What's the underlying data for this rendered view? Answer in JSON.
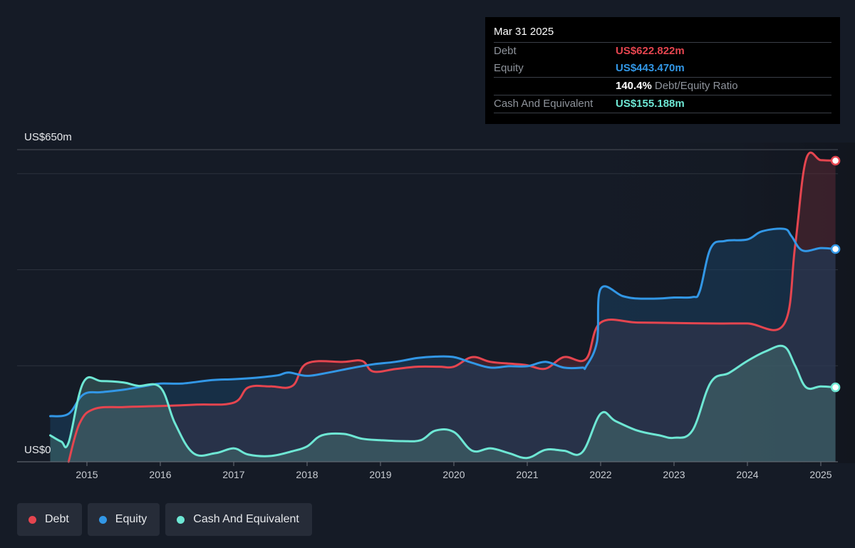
{
  "tooltip": {
    "date": "Mar 31 2025",
    "rows": [
      {
        "label": "Debt",
        "value": "US$622.822m",
        "color": "#e5454f"
      },
      {
        "label": "Equity",
        "value": "US$443.470m",
        "color": "#3297e6"
      },
      {
        "label": "",
        "value": "140.4%",
        "extra": "Debt/Equity Ratio",
        "color": "#ffffff"
      },
      {
        "label": "Cash And Equivalent",
        "value": "US$155.188m",
        "color": "#6ee7d4"
      }
    ]
  },
  "legend": [
    {
      "label": "Debt",
      "color": "#e5454f"
    },
    {
      "label": "Equity",
      "color": "#3297e6"
    },
    {
      "label": "Cash And Equivalent",
      "color": "#6ee7d4"
    }
  ],
  "chart_data": {
    "type": "area",
    "y_top_label": "US$650m",
    "y_bottom_label": "US$0",
    "ylim": [
      0,
      650
    ],
    "xlim": [
      2014.5,
      2025.25
    ],
    "x_ticks": [
      "2015",
      "2016",
      "2017",
      "2018",
      "2019",
      "2020",
      "2021",
      "2022",
      "2023",
      "2024",
      "2025"
    ],
    "grid": true,
    "series": [
      {
        "name": "Debt",
        "color": "#e5454f",
        "x": [
          2014.75,
          2014.9,
          2015.1,
          2015.5,
          2016.0,
          2016.5,
          2017.0,
          2017.2,
          2017.5,
          2017.8,
          2018.0,
          2018.5,
          2018.75,
          2018.9,
          2019.2,
          2019.5,
          2019.8,
          2020.0,
          2020.25,
          2020.5,
          2020.8,
          2021.0,
          2021.25,
          2021.5,
          2021.8,
          2022.0,
          2022.5,
          2023.0,
          2023.5,
          2024.0,
          2024.5,
          2024.65,
          2024.8,
          2025.0,
          2025.2
        ],
        "values": [
          0,
          80,
          110,
          114,
          116,
          119,
          123,
          155,
          157,
          158,
          205,
          208,
          210,
          188,
          193,
          198,
          198,
          198,
          218,
          208,
          204,
          201,
          194,
          218,
          214,
          290,
          290,
          289,
          288,
          288,
          287,
          450,
          630,
          628,
          627
        ]
      },
      {
        "name": "Equity",
        "color": "#3297e6",
        "x": [
          2014.5,
          2014.75,
          2014.95,
          2015.2,
          2015.5,
          2015.8,
          2016.0,
          2016.3,
          2016.7,
          2017.0,
          2017.3,
          2017.6,
          2017.75,
          2018.0,
          2018.3,
          2018.6,
          2018.9,
          2019.2,
          2019.5,
          2019.75,
          2020.0,
          2020.25,
          2020.5,
          2020.75,
          2021.0,
          2021.25,
          2021.5,
          2021.75,
          2021.8,
          2021.95,
          2022.0,
          2022.3,
          2022.5,
          2022.8,
          2023.0,
          2023.25,
          2023.35,
          2023.5,
          2023.7,
          2024.0,
          2024.2,
          2024.5,
          2024.6,
          2024.75,
          2025.0,
          2025.2
        ],
        "values": [
          95,
          100,
          140,
          145,
          150,
          158,
          163,
          163,
          170,
          172,
          175,
          180,
          186,
          179,
          186,
          195,
          203,
          208,
          216,
          219,
          218,
          206,
          196,
          199,
          199,
          208,
          196,
          196,
          198,
          250,
          360,
          345,
          340,
          340,
          342,
          343,
          355,
          445,
          460,
          463,
          480,
          485,
          470,
          440,
          445,
          443
        ]
      },
      {
        "name": "Cash And Equivalent",
        "color": "#6ee7d4",
        "x": [
          2014.5,
          2014.65,
          2014.75,
          2014.95,
          2015.2,
          2015.5,
          2015.7,
          2016.0,
          2016.2,
          2016.45,
          2016.75,
          2017.0,
          2017.2,
          2017.5,
          2017.8,
          2018.0,
          2018.2,
          2018.5,
          2018.75,
          2019.0,
          2019.3,
          2019.55,
          2019.75,
          2020.0,
          2020.25,
          2020.5,
          2020.75,
          2021.0,
          2021.25,
          2021.5,
          2021.75,
          2022.0,
          2022.2,
          2022.5,
          2022.8,
          2023.0,
          2023.25,
          2023.5,
          2023.75,
          2024.0,
          2024.25,
          2024.5,
          2024.65,
          2024.8,
          2025.0,
          2025.2
        ],
        "values": [
          55,
          42,
          40,
          165,
          168,
          165,
          158,
          155,
          80,
          18,
          18,
          28,
          15,
          12,
          22,
          32,
          55,
          58,
          48,
          45,
          43,
          45,
          65,
          62,
          23,
          28,
          18,
          8,
          25,
          23,
          20,
          100,
          85,
          65,
          55,
          50,
          65,
          165,
          185,
          210,
          230,
          240,
          200,
          155,
          157,
          155
        ]
      }
    ]
  }
}
